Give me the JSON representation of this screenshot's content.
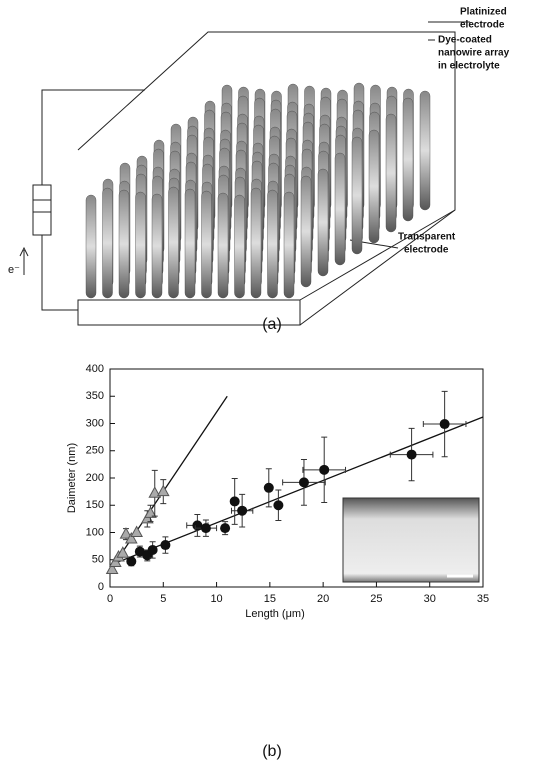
{
  "diagram": {
    "platinized_label": [
      "Platinized",
      "electrode"
    ],
    "nanowire_label": [
      "Dye-coated",
      "nanowire array",
      "in electrolyte"
    ],
    "transparent_label": [
      "Transparent",
      "electrode"
    ],
    "electron_label": "e⁻",
    "caption": "(a)"
  },
  "chart_data": {
    "type": "scatter",
    "caption": "(b)",
    "x_label": "Length (μm)",
    "y_label": "Daimeter (nm)",
    "xlim": [
      0,
      35
    ],
    "ylim": [
      0,
      400
    ],
    "xticks": [
      0,
      5,
      10,
      15,
      20,
      25,
      30,
      35
    ],
    "yticks": [
      0,
      50,
      100,
      150,
      200,
      250,
      300,
      350,
      400
    ],
    "series": [
      {
        "marker": "circle",
        "color": "#111111",
        "x": [
          2,
          2.8,
          3.5,
          4,
          5.2,
          8.2,
          9,
          10.8,
          11.7,
          12.4,
          14.9,
          15.8,
          18.2,
          20.1,
          28.3,
          31.4
        ],
        "values": [
          47,
          65,
          58,
          68,
          77,
          113,
          108,
          108,
          157,
          140,
          182,
          150,
          192,
          215,
          243,
          299
        ],
        "y_err": [
          8,
          10,
          10,
          15,
          15,
          20,
          15,
          12,
          42,
          30,
          35,
          28,
          42,
          60,
          48,
          60
        ],
        "x_err": [
          null,
          null,
          null,
          null,
          null,
          1,
          1,
          null,
          null,
          1,
          null,
          null,
          2,
          2,
          2,
          2
        ]
      },
      {
        "marker": "triangle",
        "color": "#aaaaaa",
        "x": [
          0.2,
          0.5,
          0.8,
          1.2,
          1.5,
          2,
          2.5,
          3.5,
          3.8,
          4.2,
          5
        ],
        "values": [
          32,
          45,
          55,
          62,
          97,
          88,
          100,
          125,
          135,
          172,
          175
        ],
        "y_err": [
          null,
          null,
          null,
          null,
          10,
          null,
          null,
          15,
          15,
          42,
          22
        ],
        "x_err": [
          null,
          null,
          null,
          null,
          null,
          null,
          null,
          null,
          null,
          null,
          null
        ]
      }
    ],
    "fits": [
      {
        "color": "#111111",
        "x": [
          0,
          35
        ],
        "values": [
          40,
          312
        ]
      },
      {
        "color": "#111111",
        "x": [
          0,
          11
        ],
        "values": [
          30,
          350
        ]
      }
    ]
  }
}
